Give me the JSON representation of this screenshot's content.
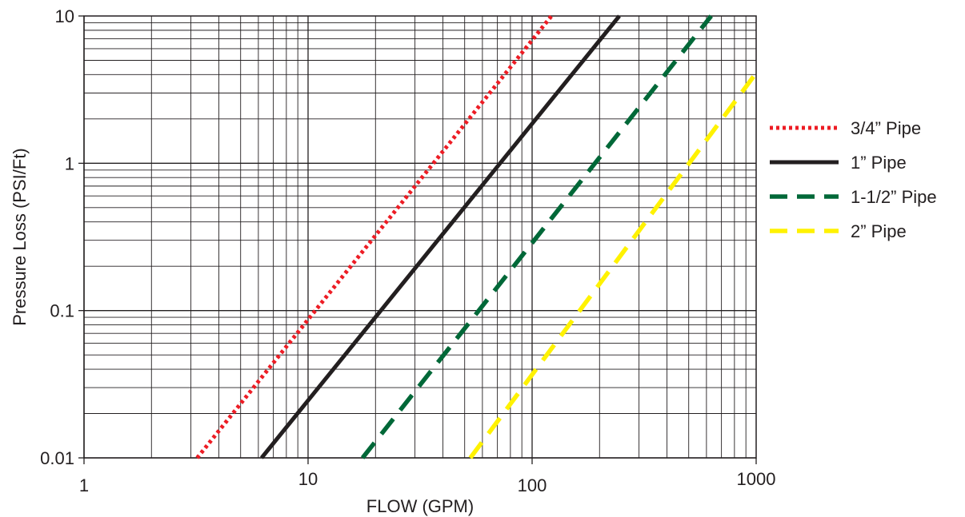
{
  "chart_data": {
    "type": "line",
    "xlabel": "FLOW (GPM)",
    "ylabel": "Pressure Loss (PSI/Ft)",
    "xscale": "log",
    "yscale": "log",
    "xlim": [
      1,
      1000
    ],
    "ylim": [
      0.01,
      10
    ],
    "x_ticks": [
      {
        "value": 1,
        "label": "1"
      },
      {
        "value": 10,
        "label": "10"
      },
      {
        "value": 100,
        "label": "100"
      },
      {
        "value": 1000,
        "label": "1000"
      }
    ],
    "y_ticks": [
      {
        "value": 0.01,
        "label": "0.01"
      },
      {
        "value": 0.1,
        "label": "0.1"
      },
      {
        "value": 1,
        "label": "1"
      },
      {
        "value": 10,
        "label": "10"
      }
    ],
    "grid": true,
    "legend_position": "right",
    "series": [
      {
        "name": "3/4” Pipe",
        "color": "#ed1c24",
        "style": "dotted",
        "points": [
          [
            3.2,
            0.01
          ],
          [
            122,
            10
          ]
        ]
      },
      {
        "name": "1” Pipe",
        "color": "#231f20",
        "style": "solid",
        "points": [
          [
            6.2,
            0.01
          ],
          [
            245,
            10
          ]
        ]
      },
      {
        "name": "1-1/2” Pipe",
        "color": "#006838",
        "style": "dashed",
        "points": [
          [
            17.5,
            0.01
          ],
          [
            630,
            10
          ]
        ]
      },
      {
        "name": "2” Pipe",
        "color": "#fff200",
        "style": "dashed",
        "points": [
          [
            53,
            0.01
          ],
          [
            1000,
            4.1
          ]
        ]
      }
    ]
  }
}
